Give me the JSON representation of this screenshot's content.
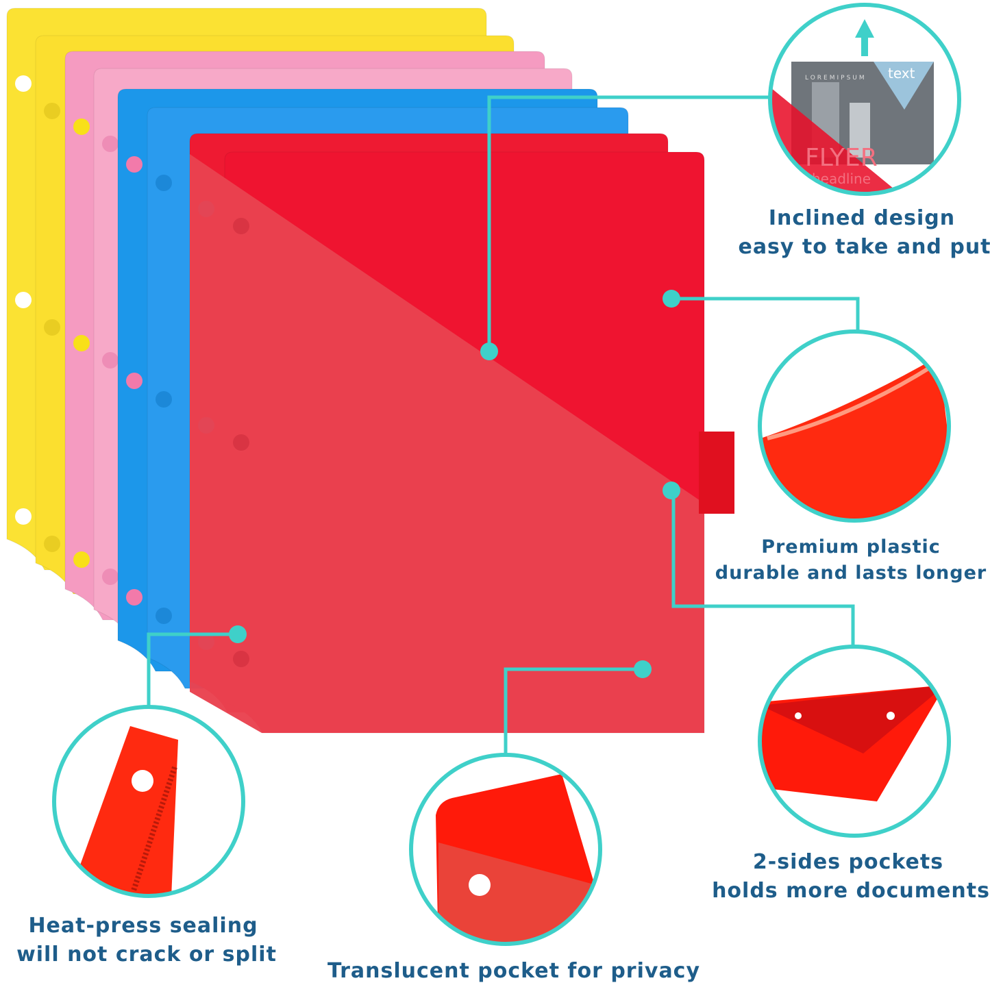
{
  "features": [
    {
      "lines": [
        "Inclined design",
        "easy to take and put"
      ]
    },
    {
      "lines": [
        "Premium plastic",
        "durable and lasts longer"
      ]
    },
    {
      "lines": [
        "2-sides pockets",
        "holds more documents"
      ]
    },
    {
      "lines": [
        "Heat-press sealing",
        "will not crack or split"
      ]
    },
    {
      "lines": [
        "Translucent pocket for privacy"
      ]
    }
  ],
  "inset": {
    "brand": "LOREMIPSUM",
    "logo": "text",
    "title": "FLYER",
    "subtitle": "headline"
  }
}
